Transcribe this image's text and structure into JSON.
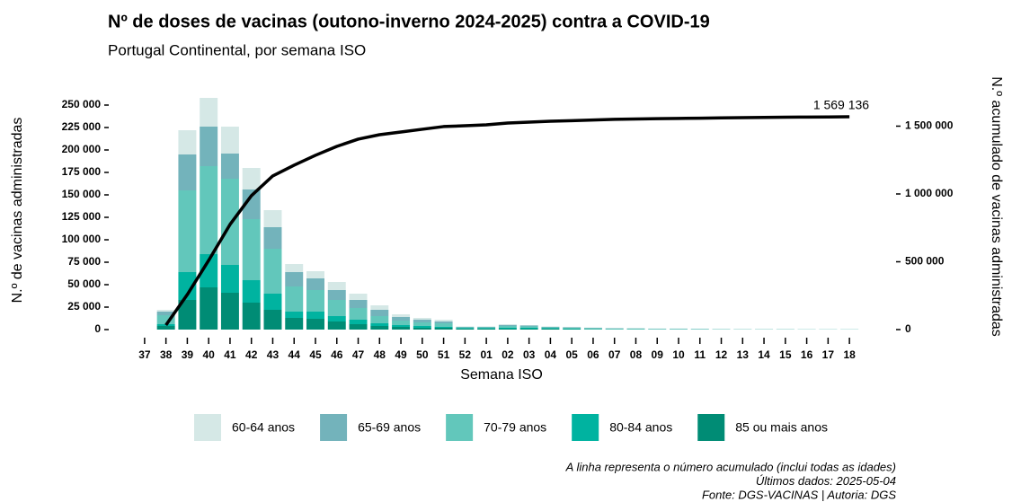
{
  "chart_data": {
    "type": "bar",
    "title": "Nº de doses de vacinas (outono-inverno 2024-2025) contra a COVID-19",
    "subtitle": "Portugal Continental, por semana ISO",
    "x_label": "Semana ISO",
    "y_label": "N.º de vacinas administradas",
    "y2_label": "N.º acumulado de vacinas administradas",
    "stacked": true,
    "categories": [
      "37",
      "38",
      "39",
      "40",
      "41",
      "42",
      "43",
      "44",
      "45",
      "46",
      "47",
      "48",
      "49",
      "50",
      "51",
      "52",
      "01",
      "02",
      "03",
      "04",
      "05",
      "06",
      "07",
      "08",
      "09",
      "10",
      "11",
      "12",
      "13",
      "14",
      "15",
      "16",
      "17",
      "18"
    ],
    "series": [
      {
        "name": "60-64 anos",
        "color": "#d5e8e6",
        "values": [
          0,
          2000,
          27000,
          32000,
          30000,
          24000,
          19000,
          9000,
          8000,
          9000,
          7000,
          5000,
          3000,
          2000,
          2000,
          500,
          500,
          1000,
          500,
          500,
          500,
          300,
          300,
          200,
          200,
          200,
          100,
          100,
          100,
          100,
          100,
          100,
          100,
          100
        ]
      },
      {
        "name": "65-69 anos",
        "color": "#73b3bb",
        "values": [
          0,
          4000,
          40000,
          44000,
          28000,
          33000,
          24000,
          16000,
          13000,
          11000,
          9000,
          7000,
          4000,
          3000,
          2000,
          500,
          500,
          1000,
          1000,
          500,
          500,
          400,
          300,
          300,
          200,
          200,
          200,
          100,
          100,
          100,
          100,
          100,
          100,
          100
        ]
      },
      {
        "name": "70-79 anos",
        "color": "#62c7bb",
        "values": [
          0,
          10000,
          91000,
          98000,
          96000,
          68000,
          50000,
          28000,
          24000,
          18000,
          13000,
          8000,
          5000,
          4000,
          4000,
          1000,
          1000,
          2000,
          1500,
          1000,
          1000,
          800,
          600,
          500,
          400,
          400,
          300,
          300,
          200,
          200,
          200,
          100,
          100,
          100
        ]
      },
      {
        "name": "80-84 anos",
        "color": "#00b3a0",
        "values": [
          0,
          2000,
          31000,
          37000,
          31000,
          25000,
          18000,
          7000,
          8000,
          6000,
          5000,
          3000,
          2000,
          2000,
          1000,
          500,
          500,
          1000,
          1000,
          500,
          500,
          400,
          300,
          300,
          200,
          200,
          200,
          100,
          100,
          100,
          100,
          100,
          100,
          100
        ]
      },
      {
        "name": "85 ou mais anos",
        "color": "#008c75",
        "values": [
          0,
          4000,
          33000,
          47000,
          41000,
          30000,
          22000,
          13000,
          12000,
          9000,
          6000,
          4000,
          3000,
          2000,
          2000,
          1000,
          1000,
          1000,
          1000,
          1000,
          500,
          400,
          300,
          300,
          200,
          200,
          200,
          100,
          100,
          100,
          100,
          100,
          100,
          100
        ]
      },
      {
        "type": "line",
        "axis": "y2",
        "color": "#000000",
        "values": [
          null,
          33000,
          258000,
          510000,
          775000,
          987000,
          1133000,
          1212000,
          1285000,
          1351000,
          1404000,
          1437000,
          1457000,
          1477000,
          1497000,
          1503000,
          1510000,
          1523000,
          1530000,
          1536000,
          1540000,
          1545000,
          1550000,
          1553000,
          1555000,
          1557000,
          1559000,
          1561000,
          1563000,
          1564500,
          1566000,
          1567000,
          1568000,
          1569136
        ],
        "value_labels": [
          null,
          null,
          null,
          null,
          null,
          null,
          null,
          null,
          null,
          null,
          null,
          null,
          null,
          null,
          null,
          null,
          null,
          null,
          null,
          null,
          null,
          null,
          null,
          null,
          null,
          null,
          null,
          null,
          null,
          null,
          null,
          null,
          null,
          "1 569 136"
        ]
      }
    ],
    "ylim": [
      0,
      267000
    ],
    "yticks": [
      0,
      {
        "value": 25000,
        "label": "25 000"
      },
      {
        "value": 50000,
        "label": "50 000"
      },
      {
        "value": 75000,
        "label": "75 000"
      },
      {
        "value": 100000,
        "label": "100 000"
      },
      {
        "value": 125000,
        "label": "125 000"
      },
      {
        "value": 150000,
        "label": "150 000"
      },
      {
        "value": 175000,
        "label": "175 000"
      },
      {
        "value": 200000,
        "label": "200 000"
      },
      {
        "value": 225000,
        "label": "225 000"
      },
      {
        "value": 250000,
        "label": "250 000"
      }
    ],
    "y2lim": [
      0,
      1768000
    ],
    "y2ticks": [
      0,
      {
        "value": 500000,
        "label": "500 000"
      },
      {
        "value": 1000000,
        "label": "1 000 000"
      },
      {
        "value": 1500000,
        "label": "1 500 000"
      }
    ],
    "grid": false,
    "legend": "bottom",
    "notes": [
      "A linha representa o número acumulado (inclui todas as idades)",
      "Últimos dados: 2025-05-04",
      "Fonte: DGS-VACINAS | Autoria: DGS"
    ]
  }
}
